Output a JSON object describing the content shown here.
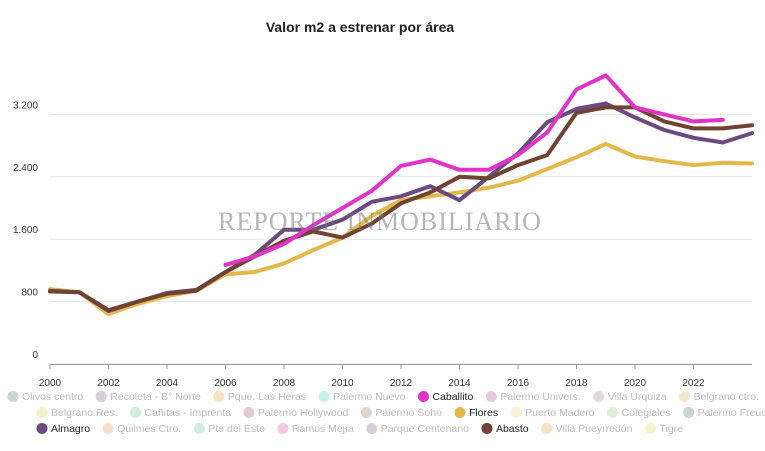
{
  "colors": {
    "Caballito": "#e033c8",
    "Flores": "#e3b84a",
    "Almagro": "#6b4a80",
    "Abasto": "#6e4331"
  },
  "chart_data": {
    "type": "line",
    "title": "Valor m2 a estrenar por área",
    "watermark": "REPORTE INMOBILIARIO",
    "x_range": [
      2000,
      2024
    ],
    "x_ticks": [
      2000,
      2002,
      2004,
      2006,
      2008,
      2010,
      2012,
      2014,
      2016,
      2018,
      2020,
      2022
    ],
    "ylim": [
      0,
      4000
    ],
    "y_ticks": [
      {
        "value": 0,
        "label": "0"
      },
      {
        "value": 800,
        "label": "800"
      },
      {
        "value": 1600,
        "label": "1.600"
      },
      {
        "value": 2400,
        "label": "2.400"
      },
      {
        "value": 3200,
        "label": "3.200"
      }
    ],
    "series": [
      {
        "name": "Flores",
        "color": "#e3b84a",
        "x": [
          2000,
          2001,
          2002,
          2003,
          2004,
          2005,
          2006,
          2007,
          2008,
          2009,
          2010,
          2011,
          2012,
          2013,
          2014,
          2015,
          2016,
          2017,
          2018,
          2019,
          2020,
          2021,
          2022,
          2023,
          2024
        ],
        "values": [
          960,
          920,
          640,
          770,
          870,
          940,
          1150,
          1180,
          1290,
          1460,
          1620,
          1900,
          2100,
          2150,
          2200,
          2260,
          2350,
          2500,
          2650,
          2820,
          2660,
          2600,
          2550,
          2580,
          2570
        ]
      },
      {
        "name": "Almagro",
        "color": "#6b4a80",
        "x": [
          2000,
          2001,
          2002,
          2003,
          2004,
          2005,
          2006,
          2007,
          2008,
          2009,
          2010,
          2011,
          2012,
          2013,
          2014,
          2015,
          2016,
          2017,
          2018,
          2019,
          2020,
          2021,
          2022,
          2023,
          2024
        ],
        "values": [
          940,
          920,
          680,
          800,
          910,
          950,
          1180,
          1400,
          1720,
          1720,
          1850,
          2080,
          2150,
          2280,
          2100,
          2400,
          2700,
          3100,
          3270,
          3340,
          3160,
          3000,
          2900,
          2840,
          2960
        ]
      },
      {
        "name": "Abasto",
        "color": "#6e4331",
        "x": [
          2000,
          2001,
          2002,
          2003,
          2004,
          2005,
          2006,
          2007,
          2008,
          2009,
          2010,
          2011,
          2012,
          2013,
          2014,
          2015,
          2016,
          2017,
          2018,
          2019,
          2020,
          2021,
          2022,
          2023,
          2024
        ],
        "values": [
          930,
          920,
          690,
          800,
          900,
          940,
          1180,
          1380,
          1580,
          1700,
          1620,
          1800,
          2060,
          2200,
          2400,
          2380,
          2550,
          2680,
          3220,
          3290,
          3290,
          3110,
          3020,
          3020,
          3060
        ]
      },
      {
        "name": "Caballito",
        "color": "#e033c8",
        "x": [
          2006,
          2007,
          2008,
          2009,
          2010,
          2011,
          2012,
          2013,
          2014,
          2015,
          2016,
          2017,
          2018,
          2019,
          2020,
          2021,
          2022,
          2023
        ],
        "values": [
          1270,
          1380,
          1540,
          1780,
          2000,
          2220,
          2540,
          2620,
          2490,
          2490,
          2680,
          2970,
          3520,
          3700,
          3290,
          3200,
          3110,
          3130
        ]
      }
    ],
    "legend": [
      {
        "label": "Olivos centro",
        "color": "#cdd6d3"
      },
      {
        "label": "Recoleta - B° Norte",
        "color": "#d9cdd9"
      },
      {
        "label": "Pque. Las Heras",
        "color": "#f3e3c5"
      },
      {
        "label": "Palermo Nuevo",
        "color": "#c9f1ec"
      },
      {
        "label": "Caballito",
        "color": "#e033c8"
      },
      {
        "label": "Palermo Univers.",
        "color": "#e3cce2"
      },
      {
        "label": "Villa Urquiza",
        "color": "#e1d9d9"
      },
      {
        "label": "Belgrano ctro.",
        "color": "#f5e6c8"
      },
      {
        "label": "Belgrano Res.",
        "color": "#f2f2c6"
      },
      {
        "label": "Cañitas - Imprenta",
        "color": "#cfeedb"
      },
      {
        "label": "Palermo Hollywood",
        "color": "#e1ccd5"
      },
      {
        "label": "Palermo Soho",
        "color": "#e0d5cf"
      },
      {
        "label": "Flores",
        "color": "#e3b84a"
      },
      {
        "label": "Puerto Madero",
        "color": "#f7f2cf"
      },
      {
        "label": "Colegiales",
        "color": "#dcefd7"
      },
      {
        "label": "Palermo Freud",
        "color": "#cbd6d1"
      },
      {
        "label": "Almagro",
        "color": "#6b4a80"
      },
      {
        "label": "Quilmes Ctro.",
        "color": "#f5e1c9"
      },
      {
        "label": "Pte del Este",
        "color": "#cdeee7"
      },
      {
        "label": "Ramos Mejía",
        "color": "#f1c9e6"
      },
      {
        "label": "Parque Centenario",
        "color": "#d9cfd9"
      },
      {
        "label": "Abasto",
        "color": "#6e4331"
      },
      {
        "label": "Villa Pueyrredón",
        "color": "#f4e2c3"
      },
      {
        "label": "Tigre",
        "color": "#f5f4cd"
      }
    ]
  }
}
